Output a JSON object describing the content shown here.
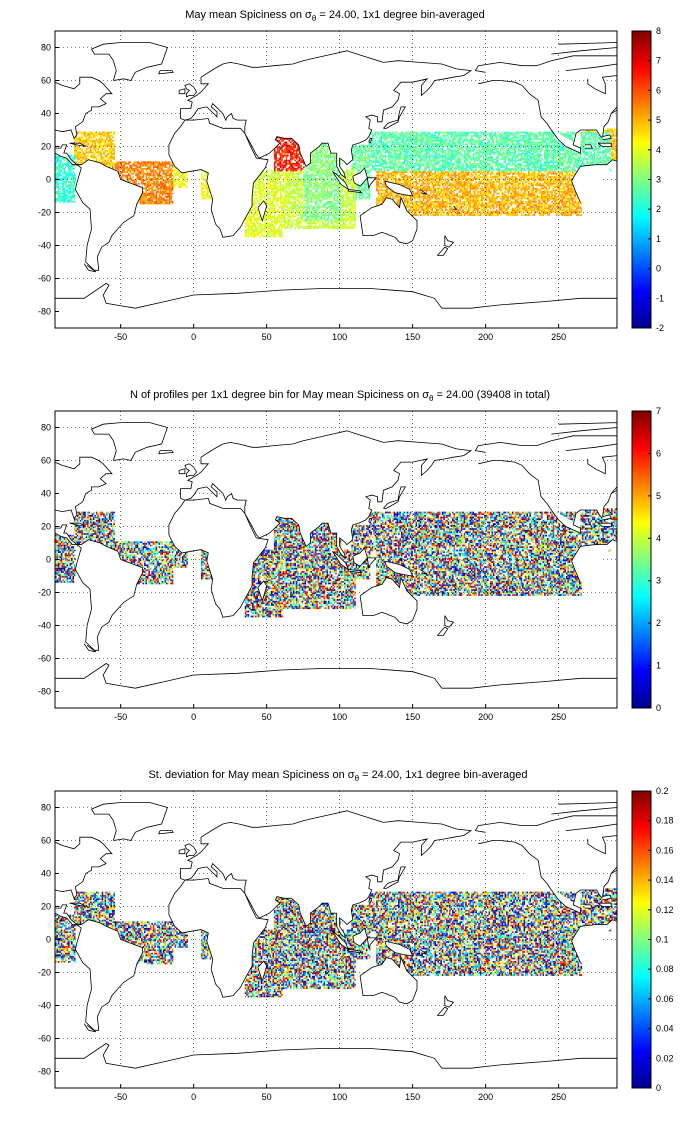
{
  "figure": {
    "panels": [
      {
        "id": "spiciness-mean",
        "title_prefix": "May mean Spiciness on ",
        "title_symbol": "σ",
        "title_subscript": "θ",
        "title_suffix": " = 24.00, 1x1 degree bin-averaged",
        "xticks": [
          "-50",
          "0",
          "50",
          "100",
          "150",
          "200",
          "250"
        ],
        "yticks": [
          "80",
          "60",
          "40",
          "20",
          "0",
          "-20",
          "-40",
          "-60",
          "-80"
        ],
        "colorbar_ticks": [
          "8",
          "7",
          "6",
          "5",
          "4",
          "3",
          "2",
          "1",
          "0",
          "-1",
          "-2"
        ],
        "color_range": [
          -2,
          8
        ]
      },
      {
        "id": "profile-count",
        "title_prefix": "N of profiles per 1x1 degree bin for May mean Spiciness on ",
        "title_symbol": "σ",
        "title_subscript": "θ",
        "title_suffix": " = 24.00 (39408 in total)",
        "xticks": [
          "-50",
          "0",
          "50",
          "100",
          "150",
          "200",
          "250"
        ],
        "yticks": [
          "80",
          "60",
          "40",
          "20",
          "0",
          "-20",
          "-40",
          "-60",
          "-80"
        ],
        "colorbar_ticks": [
          "7",
          "6",
          "5",
          "4",
          "3",
          "2",
          "1",
          "0"
        ],
        "color_range": [
          0,
          7
        ]
      },
      {
        "id": "spiciness-std",
        "title_prefix": "St. deviation for May mean Spiciness on ",
        "title_symbol": "σ",
        "title_subscript": "θ",
        "title_suffix": " = 24.00, 1x1 degree bin-averaged",
        "xticks": [
          "-50",
          "0",
          "50",
          "100",
          "150",
          "200",
          "250"
        ],
        "yticks": [
          "80",
          "60",
          "40",
          "20",
          "0",
          "-20",
          "-40",
          "-60",
          "-80"
        ],
        "colorbar_ticks": [
          "0.2",
          "0.18",
          "0.16",
          "0.14",
          "0.12",
          "0.1",
          "0.08",
          "0.06",
          "0.04",
          "0.02",
          "0"
        ],
        "color_range": [
          0,
          0.2
        ]
      }
    ],
    "map_extent": {
      "lon": [
        -95,
        290
      ],
      "lat": [
        -90,
        90
      ]
    },
    "colormap": "jet",
    "coastline_color": "#000000",
    "grid": "dotted"
  }
}
